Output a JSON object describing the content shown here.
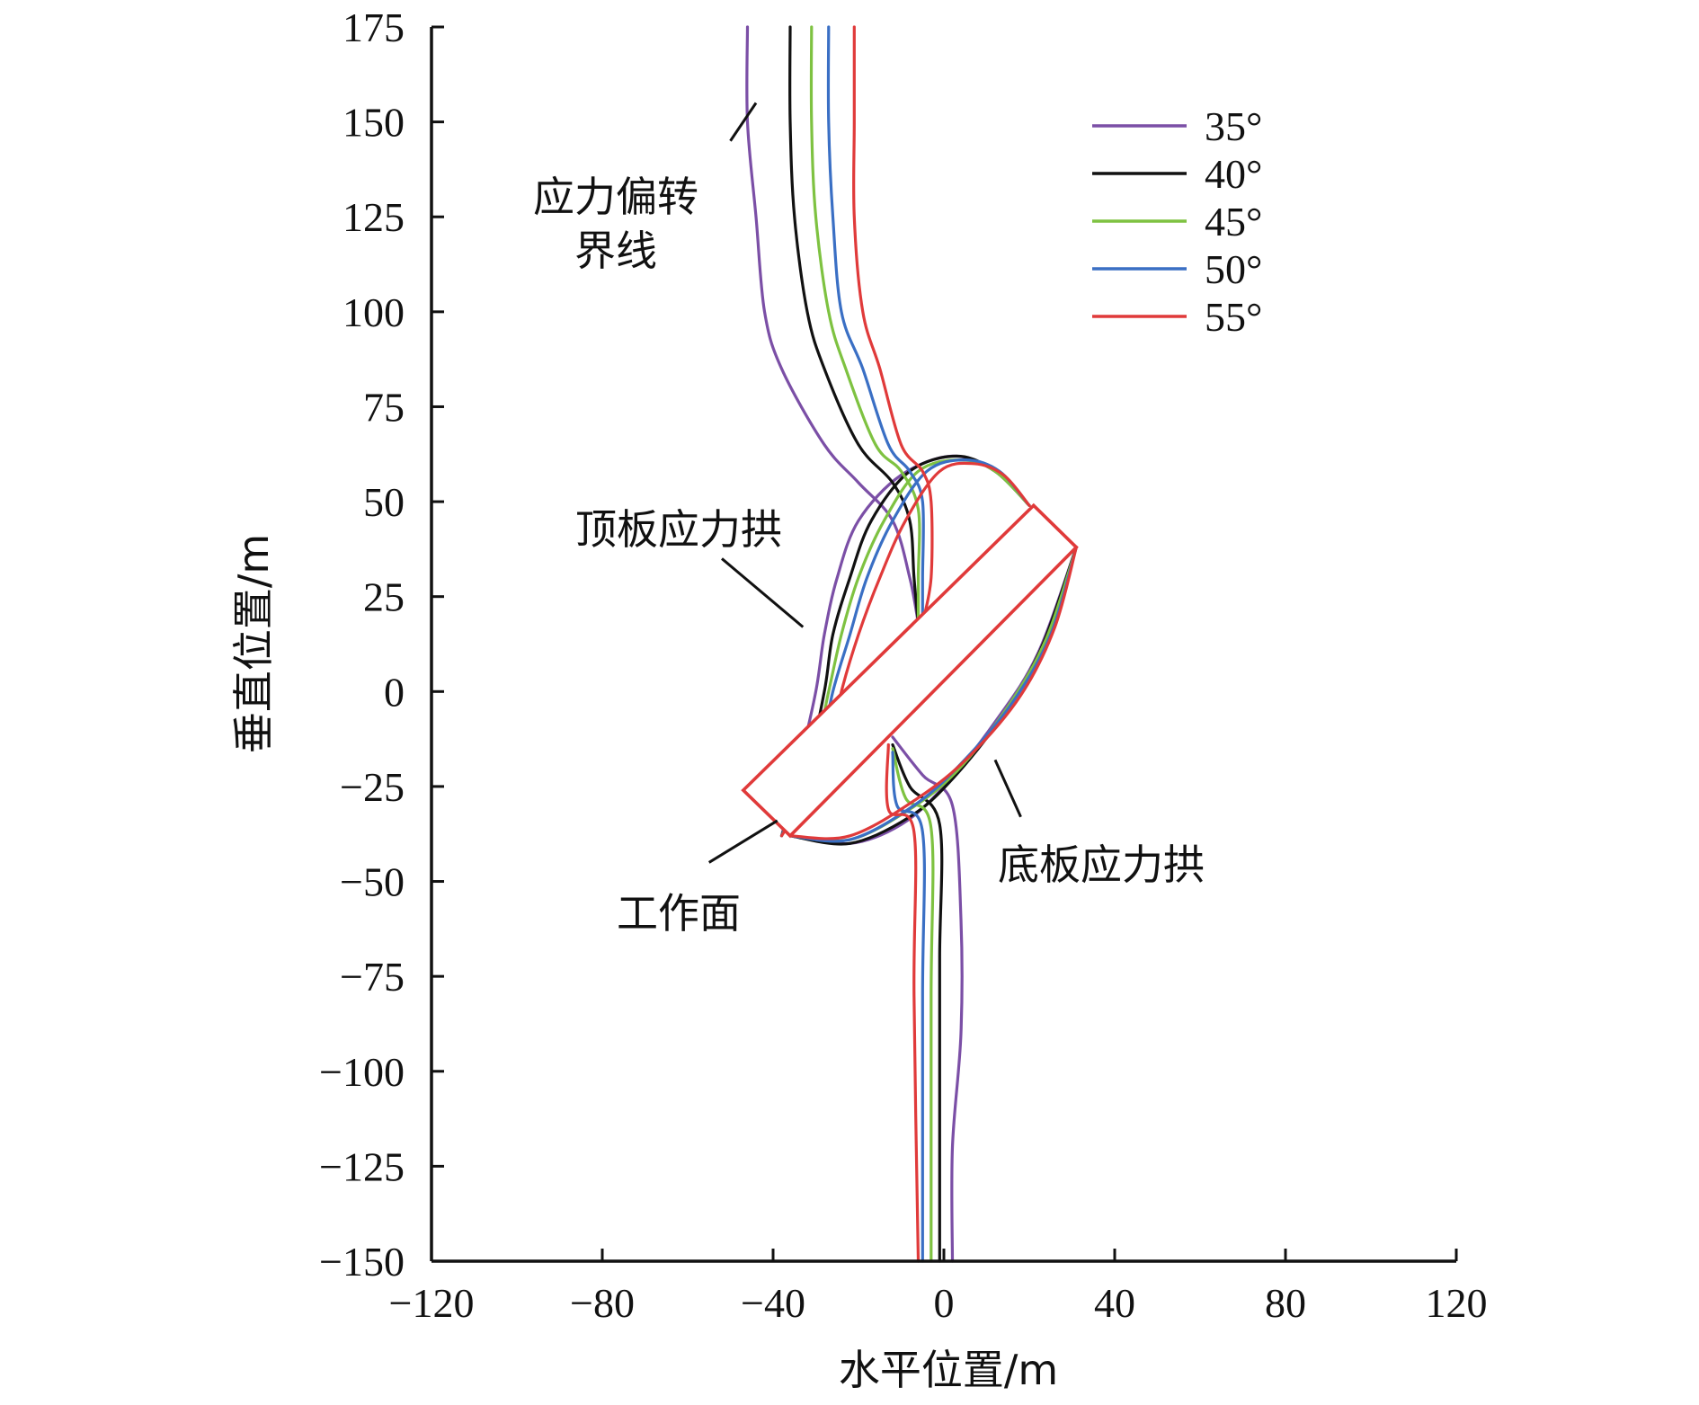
{
  "chart_data": {
    "type": "line",
    "xlabel": "水平位置/m",
    "ylabel": "垂直位置/m",
    "xlim": [
      -120,
      120
    ],
    "ylim": [
      -150,
      175
    ],
    "x_ticks": [
      "−120",
      "−80",
      "−40",
      "0",
      "40",
      "80",
      "120"
    ],
    "y_ticks": [
      "175",
      "150",
      "125",
      "100",
      "75",
      "50",
      "25",
      "0",
      "−25",
      "−50",
      "−75",
      "−100",
      "−125",
      "−150"
    ],
    "legend": {
      "position": "top-right"
    },
    "grid": false,
    "series": [
      {
        "name": "35°",
        "color": "#7b4fa6",
        "boundary_line": [
          [
            -46,
            175
          ],
          [
            -46,
            150
          ],
          [
            -44,
            125
          ],
          [
            -42,
            100
          ],
          [
            -38,
            85
          ],
          [
            -28,
            65
          ],
          [
            -20,
            55
          ],
          [
            -12,
            45
          ],
          [
            -8,
            30
          ],
          [
            -6,
            18
          ]
        ],
        "roof_arch": [
          [
            -38,
            -38
          ],
          [
            -34,
            -20
          ],
          [
            -30,
            0
          ],
          [
            -28,
            15
          ],
          [
            -25,
            30
          ],
          [
            -20,
            45
          ],
          [
            -10,
            57
          ],
          [
            2,
            62
          ],
          [
            12,
            58
          ],
          [
            20,
            49
          ]
        ],
        "floor_arch": [
          [
            -36,
            -38
          ],
          [
            -22,
            -40
          ],
          [
            -10,
            -35
          ],
          [
            0,
            -25
          ],
          [
            12,
            -8
          ],
          [
            22,
            10
          ],
          [
            31,
            38
          ]
        ],
        "boundary_lower": [
          [
            -12,
            -12
          ],
          [
            -5,
            -22
          ],
          [
            2,
            -30
          ],
          [
            4,
            -60
          ],
          [
            4,
            -90
          ],
          [
            2,
            -120
          ],
          [
            2,
            -150
          ]
        ]
      },
      {
        "name": "40°",
        "color": "#111111",
        "boundary_line": [
          [
            -36,
            175
          ],
          [
            -36,
            150
          ],
          [
            -35,
            125
          ],
          [
            -32,
            100
          ],
          [
            -28,
            85
          ],
          [
            -20,
            65
          ],
          [
            -12,
            55
          ],
          [
            -8,
            45
          ],
          [
            -7,
            30
          ],
          [
            -6,
            18
          ]
        ],
        "roof_arch": [
          [
            -38,
            -38
          ],
          [
            -32,
            -20
          ],
          [
            -28,
            0
          ],
          [
            -26,
            15
          ],
          [
            -22,
            30
          ],
          [
            -17,
            45
          ],
          [
            -8,
            58
          ],
          [
            3,
            62
          ],
          [
            12,
            58
          ],
          [
            20,
            49
          ]
        ],
        "floor_arch": [
          [
            -36,
            -38
          ],
          [
            -22,
            -40
          ],
          [
            -8,
            -33
          ],
          [
            2,
            -23
          ],
          [
            14,
            -6
          ],
          [
            23,
            12
          ],
          [
            31,
            38
          ]
        ],
        "boundary_lower": [
          [
            -12,
            -14
          ],
          [
            -8,
            -25
          ],
          [
            -1,
            -35
          ],
          [
            -1,
            -70
          ],
          [
            -1,
            -110
          ],
          [
            -1,
            -150
          ]
        ]
      },
      {
        "name": "45°",
        "color": "#7ec241",
        "boundary_line": [
          [
            -31,
            175
          ],
          [
            -31,
            150
          ],
          [
            -30,
            125
          ],
          [
            -27,
            100
          ],
          [
            -23,
            85
          ],
          [
            -16,
            65
          ],
          [
            -10,
            58
          ],
          [
            -6,
            48
          ],
          [
            -6,
            30
          ],
          [
            -6,
            18
          ]
        ],
        "roof_arch": [
          [
            -38,
            -38
          ],
          [
            -31,
            -20
          ],
          [
            -27,
            0
          ],
          [
            -24,
            15
          ],
          [
            -20,
            30
          ],
          [
            -14,
            45
          ],
          [
            -6,
            58
          ],
          [
            4,
            61
          ],
          [
            12,
            58
          ],
          [
            20,
            49
          ]
        ],
        "floor_arch": [
          [
            -36,
            -38
          ],
          [
            -22,
            -39
          ],
          [
            -8,
            -31
          ],
          [
            3,
            -21
          ],
          [
            15,
            -4
          ],
          [
            24,
            14
          ],
          [
            31,
            38
          ]
        ],
        "boundary_lower": [
          [
            -12,
            -15
          ],
          [
            -9,
            -28
          ],
          [
            -3,
            -36
          ],
          [
            -3,
            -80
          ],
          [
            -3,
            -150
          ]
        ]
      },
      {
        "name": "50°",
        "color": "#3a6fc4",
        "boundary_line": [
          [
            -27,
            175
          ],
          [
            -27,
            150
          ],
          [
            -26,
            125
          ],
          [
            -24,
            100
          ],
          [
            -19,
            85
          ],
          [
            -13,
            65
          ],
          [
            -8,
            58
          ],
          [
            -5,
            50
          ],
          [
            -5,
            30
          ],
          [
            -5,
            18
          ]
        ],
        "roof_arch": [
          [
            -38,
            -38
          ],
          [
            -30,
            -20
          ],
          [
            -26,
            0
          ],
          [
            -22,
            15
          ],
          [
            -18,
            30
          ],
          [
            -12,
            45
          ],
          [
            -4,
            58
          ],
          [
            5,
            61
          ],
          [
            13,
            58
          ],
          [
            20,
            49
          ]
        ],
        "floor_arch": [
          [
            -36,
            -38
          ],
          [
            -22,
            -39
          ],
          [
            -7,
            -30
          ],
          [
            4,
            -19
          ],
          [
            16,
            -3
          ],
          [
            25,
            15
          ],
          [
            31,
            38
          ]
        ],
        "boundary_lower": [
          [
            -12,
            -16
          ],
          [
            -11,
            -30
          ],
          [
            -5,
            -37
          ],
          [
            -5,
            -80
          ],
          [
            -5,
            -150
          ]
        ]
      },
      {
        "name": "55°",
        "color": "#e03a3a",
        "boundary_line": [
          [
            -21,
            175
          ],
          [
            -21,
            150
          ],
          [
            -21,
            125
          ],
          [
            -19,
            100
          ],
          [
            -15,
            85
          ],
          [
            -10,
            65
          ],
          [
            -5,
            58
          ],
          [
            -3,
            50
          ],
          [
            -3,
            30
          ],
          [
            -5,
            18
          ]
        ],
        "roof_arch": [
          [
            -38,
            -38
          ],
          [
            -28,
            -20
          ],
          [
            -24,
            0
          ],
          [
            -20,
            15
          ],
          [
            -15,
            30
          ],
          [
            -9,
            45
          ],
          [
            -1,
            58
          ],
          [
            7,
            60
          ],
          [
            14,
            57
          ],
          [
            20,
            49
          ]
        ],
        "floor_arch": [
          [
            -36,
            -38
          ],
          [
            -22,
            -38
          ],
          [
            -6,
            -28
          ],
          [
            6,
            -17
          ],
          [
            18,
            -1
          ],
          [
            26,
            17
          ],
          [
            31,
            38
          ]
        ],
        "boundary_lower": [
          [
            -13,
            -14
          ],
          [
            -13,
            -31
          ],
          [
            -7,
            -37
          ],
          [
            -7,
            -80
          ],
          [
            -6,
            -150
          ]
        ]
      }
    ],
    "workface": {
      "color": "#e03a3a",
      "corners": [
        [
          -47,
          -26
        ],
        [
          21,
          49
        ],
        [
          31,
          38
        ],
        [
          -36,
          -38
        ]
      ]
    },
    "annotations": [
      {
        "lines": [
          "应力偏转",
          "界线"
        ],
        "pointer": [
          [
            -50,
            145
          ],
          [
            -44,
            155
          ]
        ]
      },
      {
        "lines": [
          "顶板应力拱"
        ],
        "pointer": [
          [
            -52,
            35
          ],
          [
            -33,
            17
          ]
        ]
      },
      {
        "lines": [
          "底板应力拱"
        ],
        "pointer": [
          [
            12,
            -18
          ],
          [
            18,
            -33
          ]
        ]
      },
      {
        "lines": [
          "工作面"
        ],
        "pointer": [
          [
            -55,
            -45
          ],
          [
            -39,
            -34
          ]
        ]
      }
    ]
  }
}
